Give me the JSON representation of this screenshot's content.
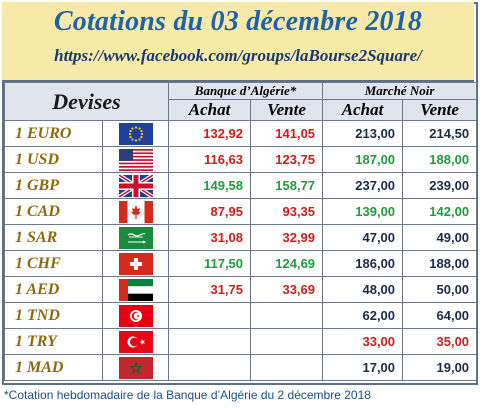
{
  "header": {
    "title": "Cotations du 03 décembre 2018",
    "url": "https://www.facebook.com/groups/laBourse2Square/"
  },
  "table": {
    "devises_label": "Devises",
    "banque_label": "Banque d’Algérie*",
    "marche_label": "Marché Noir",
    "achat_label": "Achat",
    "vente_label": "Vente",
    "rows": [
      {
        "currency": "1 EURO",
        "flag": "eu-flag-icon",
        "bank_buy": "132,92",
        "bank_sell": "141,05",
        "black_buy": "213,00",
        "black_sell": "214,50"
      },
      {
        "currency": "1 USD",
        "flag": "us-flag-icon",
        "bank_buy": "116,63",
        "bank_sell": "123,75",
        "black_buy": "187,00",
        "black_sell": "188,00"
      },
      {
        "currency": "1 GBP",
        "flag": "uk-flag-icon",
        "bank_buy": "149,58",
        "bank_sell": "158,77",
        "black_buy": "237,00",
        "black_sell": "239,00"
      },
      {
        "currency": "1 CAD",
        "flag": "canada-flag-icon",
        "bank_buy": "87,95",
        "bank_sell": "93,35",
        "black_buy": "139,00",
        "black_sell": "142,00"
      },
      {
        "currency": "1 SAR",
        "flag": "saudi-flag-icon",
        "bank_buy": "31,08",
        "bank_sell": "32,99",
        "black_buy": "47,00",
        "black_sell": "49,00"
      },
      {
        "currency": "1 CHF",
        "flag": "swiss-flag-icon",
        "bank_buy": "117,50",
        "bank_sell": "124,69",
        "black_buy": "186,00",
        "black_sell": "188,00"
      },
      {
        "currency": "1 AED",
        "flag": "uae-flag-icon",
        "bank_buy": "31,75",
        "bank_sell": "33,69",
        "black_buy": "48,00",
        "black_sell": "50,00"
      },
      {
        "currency": "1 TND",
        "flag": "tunisia-flag-icon",
        "bank_buy": "",
        "bank_sell": "",
        "black_buy": "62,00",
        "black_sell": "64,00"
      },
      {
        "currency": "1 TRY",
        "flag": "turkey-flag-icon",
        "bank_buy": "",
        "bank_sell": "",
        "black_buy": "33,00",
        "black_sell": "35,00"
      },
      {
        "currency": "1 MAD",
        "flag": "morocco-flag-icon",
        "bank_buy": "",
        "bank_sell": "",
        "black_buy": "17,00",
        "black_sell": "19,00"
      }
    ]
  },
  "footnote": "*Cotation hebdomadaire de la Banque d’Algérie du 2 décembre 2018",
  "colors": {
    "header_bg": "#f9e9a9",
    "title": "#1e63a8",
    "currency_text": "#8c6a09",
    "bank_value": "#d01c1c",
    "green_value": "#1f9b3c",
    "border": "#5d6f86"
  }
}
